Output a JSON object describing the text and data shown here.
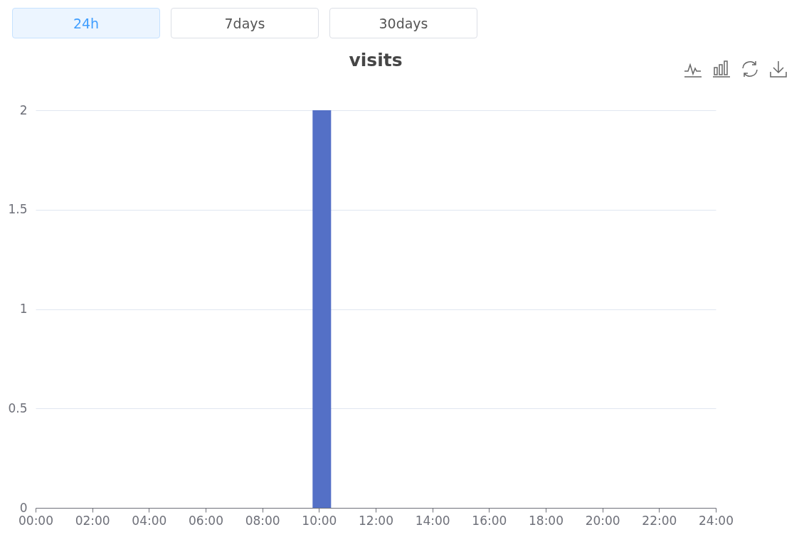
{
  "chart_data": {
    "type": "bar",
    "title": "visits",
    "annotations": [
      "24h",
      "7days",
      "30days"
    ],
    "x": [
      10.1
    ],
    "values": [
      2
    ],
    "color": "#5470c6",
    "xlim": [
      0,
      24
    ],
    "xticks": [
      {
        "value": 0,
        "label": "00:00"
      },
      {
        "value": 2,
        "label": "02:00"
      },
      {
        "value": 4,
        "label": "04:00"
      },
      {
        "value": 6,
        "label": "06:00"
      },
      {
        "value": 8,
        "label": "08:00"
      },
      {
        "value": 10,
        "label": "10:00"
      },
      {
        "value": 12,
        "label": "12:00"
      },
      {
        "value": 14,
        "label": "14:00"
      },
      {
        "value": 16,
        "label": "16:00"
      },
      {
        "value": 18,
        "label": "18:00"
      },
      {
        "value": 20,
        "label": "20:00"
      },
      {
        "value": 22,
        "label": "22:00"
      },
      {
        "value": 24,
        "label": "24:00"
      }
    ],
    "ylim": [
      0,
      2
    ],
    "yticks": [
      0,
      0.5,
      1,
      1.5,
      2
    ],
    "grid": "y"
  }
}
